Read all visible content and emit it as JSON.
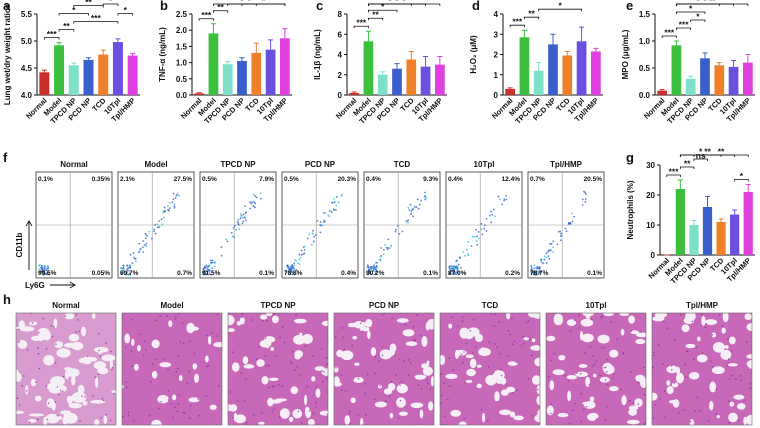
{
  "chart_data": [
    {
      "type": "bar",
      "label": "a",
      "ylabel": "Lung wet/dry weight ratios",
      "categories": [
        "Normal",
        "Model",
        "TPCD NP",
        "PCD NP",
        "TCD",
        "10Tpl",
        "Tpl/HMP"
      ],
      "colors": [
        "#c9302c",
        "#3cbf3c",
        "#7fe0c8",
        "#3a5fcd",
        "#f07f2a",
        "#6a4fe0",
        "#e040e0"
      ],
      "values": [
        4.42,
        4.92,
        4.55,
        4.65,
        4.75,
        4.98,
        4.73
      ],
      "errors": [
        0.04,
        0.05,
        0.04,
        0.04,
        0.08,
        0.06,
        0.04
      ],
      "ylim": [
        4,
        5.5
      ],
      "yticks": [
        {
          "value": 4,
          "label": "4.0"
        },
        4.5,
        {
          "value": 5,
          "label": "5.0"
        },
        5.5
      ],
      "brackets": [
        {
          "label": "***",
          "from": 0,
          "to": 1
        },
        {
          "label": "**",
          "from": 1,
          "to": 2
        },
        {
          "label": "***",
          "from": 2,
          "to": 5
        },
        {
          "label": "*",
          "from": 5,
          "to": 6
        },
        {
          "label": "*",
          "from": 1,
          "to": 3
        },
        {
          "label": "**",
          "from": 2,
          "to": 4
        },
        {
          "label": "*",
          "from": 4,
          "to": 5
        }
      ]
    },
    {
      "type": "bar",
      "label": "b",
      "ylabel": "TNF-α (ng/mL)",
      "categories": [
        "Normal",
        "Model",
        "TPCD NP",
        "PCD NP",
        "TCD",
        "10Tpl",
        "Tpl/HMP"
      ],
      "colors": [
        "#c9302c",
        "#3cbf3c",
        "#7fe0c8",
        "#3a5fcd",
        "#f07f2a",
        "#6a4fe0",
        "#e040e0"
      ],
      "values": [
        0.05,
        1.9,
        0.95,
        1.05,
        1.3,
        1.4,
        1.75
      ],
      "errors": [
        0.02,
        0.3,
        0.08,
        0.1,
        0.3,
        0.3,
        0.3
      ],
      "ylim": [
        0,
        2.5
      ],
      "yticks": [
        {
          "value": 0,
          "label": "0.0"
        },
        0.5,
        {
          "value": 1,
          "label": "1.0"
        },
        1.5,
        {
          "value": 2,
          "label": "2.0"
        },
        2.5
      ],
      "brackets": [
        {
          "label": "***",
          "from": 0,
          "to": 1
        },
        {
          "label": "**",
          "from": 1,
          "to": 2
        },
        {
          "label": "*",
          "from": 1,
          "to": 6
        },
        {
          "label": "*",
          "from": 2,
          "to": 4
        },
        {
          "label": "*",
          "from": 3,
          "to": 6
        }
      ]
    },
    {
      "type": "bar",
      "label": "c",
      "ylabel": "IL-1β (ng/mL)",
      "categories": [
        "Normal",
        "Model",
        "TPCD NP",
        "PCD NP",
        "TCD",
        "10Tpl",
        "Tpl/HMP"
      ],
      "colors": [
        "#c9302c",
        "#3cbf3c",
        "#7fe0c8",
        "#3a5fcd",
        "#f07f2a",
        "#6a4fe0",
        "#e040e0"
      ],
      "values": [
        0.2,
        5.3,
        2.0,
        2.6,
        3.5,
        2.8,
        3.0
      ],
      "errors": [
        0.1,
        1.0,
        0.3,
        0.5,
        0.8,
        1.0,
        0.8
      ],
      "ylim": [
        0,
        8
      ],
      "yticks": [
        0,
        2,
        4,
        6,
        8
      ],
      "brackets": [
        {
          "label": "***",
          "from": 0,
          "to": 1
        },
        {
          "label": "**",
          "from": 1,
          "to": 2
        },
        {
          "label": "*",
          "from": 1,
          "to": 3
        },
        {
          "label": "*",
          "from": 1,
          "to": 4
        },
        {
          "label": "*",
          "from": 1,
          "to": 5
        },
        {
          "label": "*",
          "from": 1,
          "to": 6
        }
      ]
    },
    {
      "type": "bar",
      "label": "d",
      "ylabel": "H₂O₂ (μM)",
      "categories": [
        "Normal",
        "Model",
        "TPCD NP",
        "PCD NP",
        "TCD",
        "10Tpl",
        "Tpl/HMP"
      ],
      "colors": [
        "#c9302c",
        "#3cbf3c",
        "#7fe0c8",
        "#3a5fcd",
        "#f07f2a",
        "#6a4fe0",
        "#e040e0"
      ],
      "values": [
        0.3,
        2.85,
        1.2,
        2.5,
        1.95,
        2.65,
        2.15
      ],
      "errors": [
        0.05,
        0.35,
        0.4,
        0.5,
        0.2,
        0.7,
        0.15
      ],
      "ylim": [
        0,
        4
      ],
      "yticks": [
        0,
        1,
        2,
        3,
        4
      ],
      "brackets": [
        {
          "label": "***",
          "from": 0,
          "to": 1
        },
        {
          "label": "**",
          "from": 1,
          "to": 2
        },
        {
          "label": "*",
          "from": 2,
          "to": 5
        }
      ]
    },
    {
      "type": "bar",
      "label": "e",
      "ylabel": "MPO (μg/mL)",
      "categories": [
        "Normal",
        "Model",
        "TPCD NP",
        "PCD NP",
        "TCD",
        "10Tpl",
        "Tpl/HMP"
      ],
      "colors": [
        "#c9302c",
        "#3cbf3c",
        "#7fe0c8",
        "#3a5fcd",
        "#f07f2a",
        "#6a4fe0",
        "#e040e0"
      ],
      "values": [
        0.08,
        0.92,
        0.3,
        0.68,
        0.55,
        0.52,
        0.6
      ],
      "errors": [
        0.02,
        0.08,
        0.05,
        0.1,
        0.05,
        0.12,
        0.15
      ],
      "ylim": [
        0,
        1.5
      ],
      "yticks": [
        {
          "value": 0,
          "label": "0.0"
        },
        0.5,
        {
          "value": 1,
          "label": "1.0"
        },
        1.5
      ],
      "brackets": [
        {
          "label": "***",
          "from": 0,
          "to": 1
        },
        {
          "label": "***",
          "from": 1,
          "to": 2
        },
        {
          "label": "*",
          "from": 2,
          "to": 3
        },
        {
          "label": "*",
          "from": 1,
          "to": 3
        },
        {
          "label": "*",
          "from": 1,
          "to": 4
        },
        {
          "label": "*",
          "from": 1,
          "to": 5
        },
        {
          "label": "**",
          "from": 1,
          "to": 6
        }
      ]
    },
    {
      "type": "bar",
      "label": "g",
      "ylabel": "Neutrophils (%)",
      "categories": [
        "Normal",
        "Model",
        "TPCD NP",
        "PCD NP",
        "TCD",
        "10Tpl",
        "Tpl/HMP"
      ],
      "colors": [
        "#c9302c",
        "#3cbf3c",
        "#7fe0c8",
        "#3a5fcd",
        "#f07f2a",
        "#6a4fe0",
        "#e040e0"
      ],
      "values": [
        0,
        22,
        10,
        16,
        11,
        13.5,
        21
      ],
      "errors": [
        0,
        3,
        1.5,
        3.5,
        1,
        1.5,
        2.5
      ],
      "ylim": [
        0,
        30
      ],
      "yticks": [
        0,
        10,
        20,
        30
      ],
      "brackets": [
        {
          "label": "***",
          "from": 0,
          "to": 1
        },
        {
          "label": "**",
          "from": 1,
          "to": 2
        },
        {
          "label": "ns",
          "from": 2,
          "to": 3
        },
        {
          "label": "*",
          "from": 5,
          "to": 6
        },
        {
          "label": "**",
          "from": 2,
          "to": 6
        },
        {
          "label": "*",
          "from": 1,
          "to": 4
        },
        {
          "label": "**",
          "from": 1,
          "to": 5
        }
      ]
    }
  ],
  "flow": {
    "label": "f",
    "y_label": "CD11b",
    "x_label": "Ly6G",
    "panels": [
      {
        "title": "Normal",
        "upper_left": "0.1%",
        "upper_right": "0.35%",
        "lower_left": "99.5%",
        "lower_right": "0.05%"
      },
      {
        "title": "Model",
        "upper_left": "2.1%",
        "upper_right": "27.5%",
        "lower_left": "69.7%",
        "lower_right": "0.7%"
      },
      {
        "title": "TPCD NP",
        "upper_left": "0.5%",
        "upper_right": "7.9%",
        "lower_left": "91.5%",
        "lower_right": "0.1%"
      },
      {
        "title": "PCD NP",
        "upper_left": "0.5%",
        "upper_right": "20.3%",
        "lower_left": "78.8%",
        "lower_right": "0.4%"
      },
      {
        "title": "TCD",
        "upper_left": "0.4%",
        "upper_right": "9.3%",
        "lower_left": "90.2%",
        "lower_right": "0.1%"
      },
      {
        "title": "10Tpl",
        "upper_left": "0.4%",
        "upper_right": "12.4%",
        "lower_left": "87.0%",
        "lower_right": "0.2%"
      },
      {
        "title": "Tpl/HMP",
        "upper_left": "0.7%",
        "upper_right": "20.5%",
        "lower_left": "78.7%",
        "lower_right": "0.1%"
      }
    ]
  },
  "histology": {
    "label": "h",
    "panels": [
      "Normal",
      "Model",
      "TPCD NP",
      "PCD NP",
      "TCD",
      "10Tpl",
      "Tpl/HMP"
    ]
  }
}
